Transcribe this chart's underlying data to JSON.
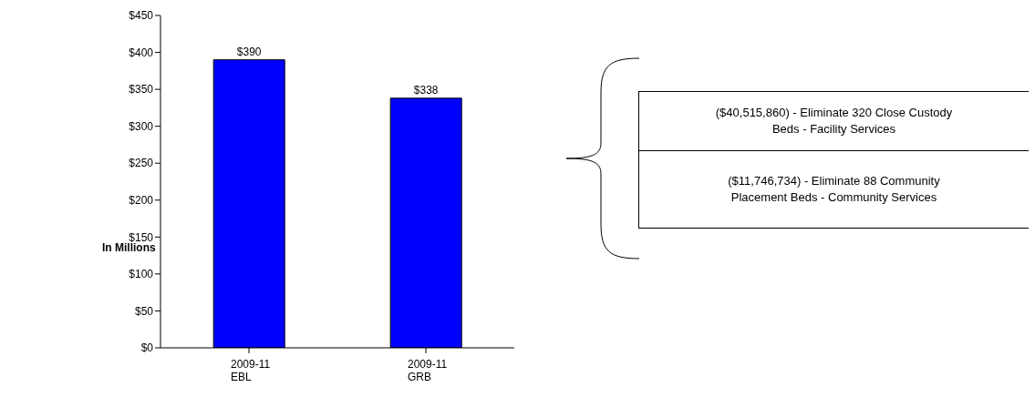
{
  "chart_data": {
    "type": "bar",
    "ylabel": "In Millions",
    "categories": [
      "2009-11\nEBL",
      "2009-11\nGRB"
    ],
    "values": [
      390,
      338
    ],
    "value_labels": [
      "$390",
      "$338"
    ],
    "color": "#0000ff",
    "ylim": [
      0,
      450
    ],
    "yticks": [
      {
        "value": 0,
        "label": "$0"
      },
      {
        "value": 50,
        "label": "$50"
      },
      {
        "value": 100,
        "label": "$100"
      },
      {
        "value": 150,
        "label": "$150"
      },
      {
        "value": 200,
        "label": "$200"
      },
      {
        "value": 250,
        "label": "$250"
      },
      {
        "value": 300,
        "label": "$300"
      },
      {
        "value": 350,
        "label": "$350"
      },
      {
        "value": 400,
        "label": "$400"
      },
      {
        "value": 450,
        "label": "$450"
      }
    ],
    "grid": false,
    "legend": false,
    "annotations": [
      "($40,515,860) - Eliminate 320 Close Custody Beds - Facility Services",
      "($11,746,734) - Eliminate 88 Community Placement Beds - Community Services"
    ]
  }
}
